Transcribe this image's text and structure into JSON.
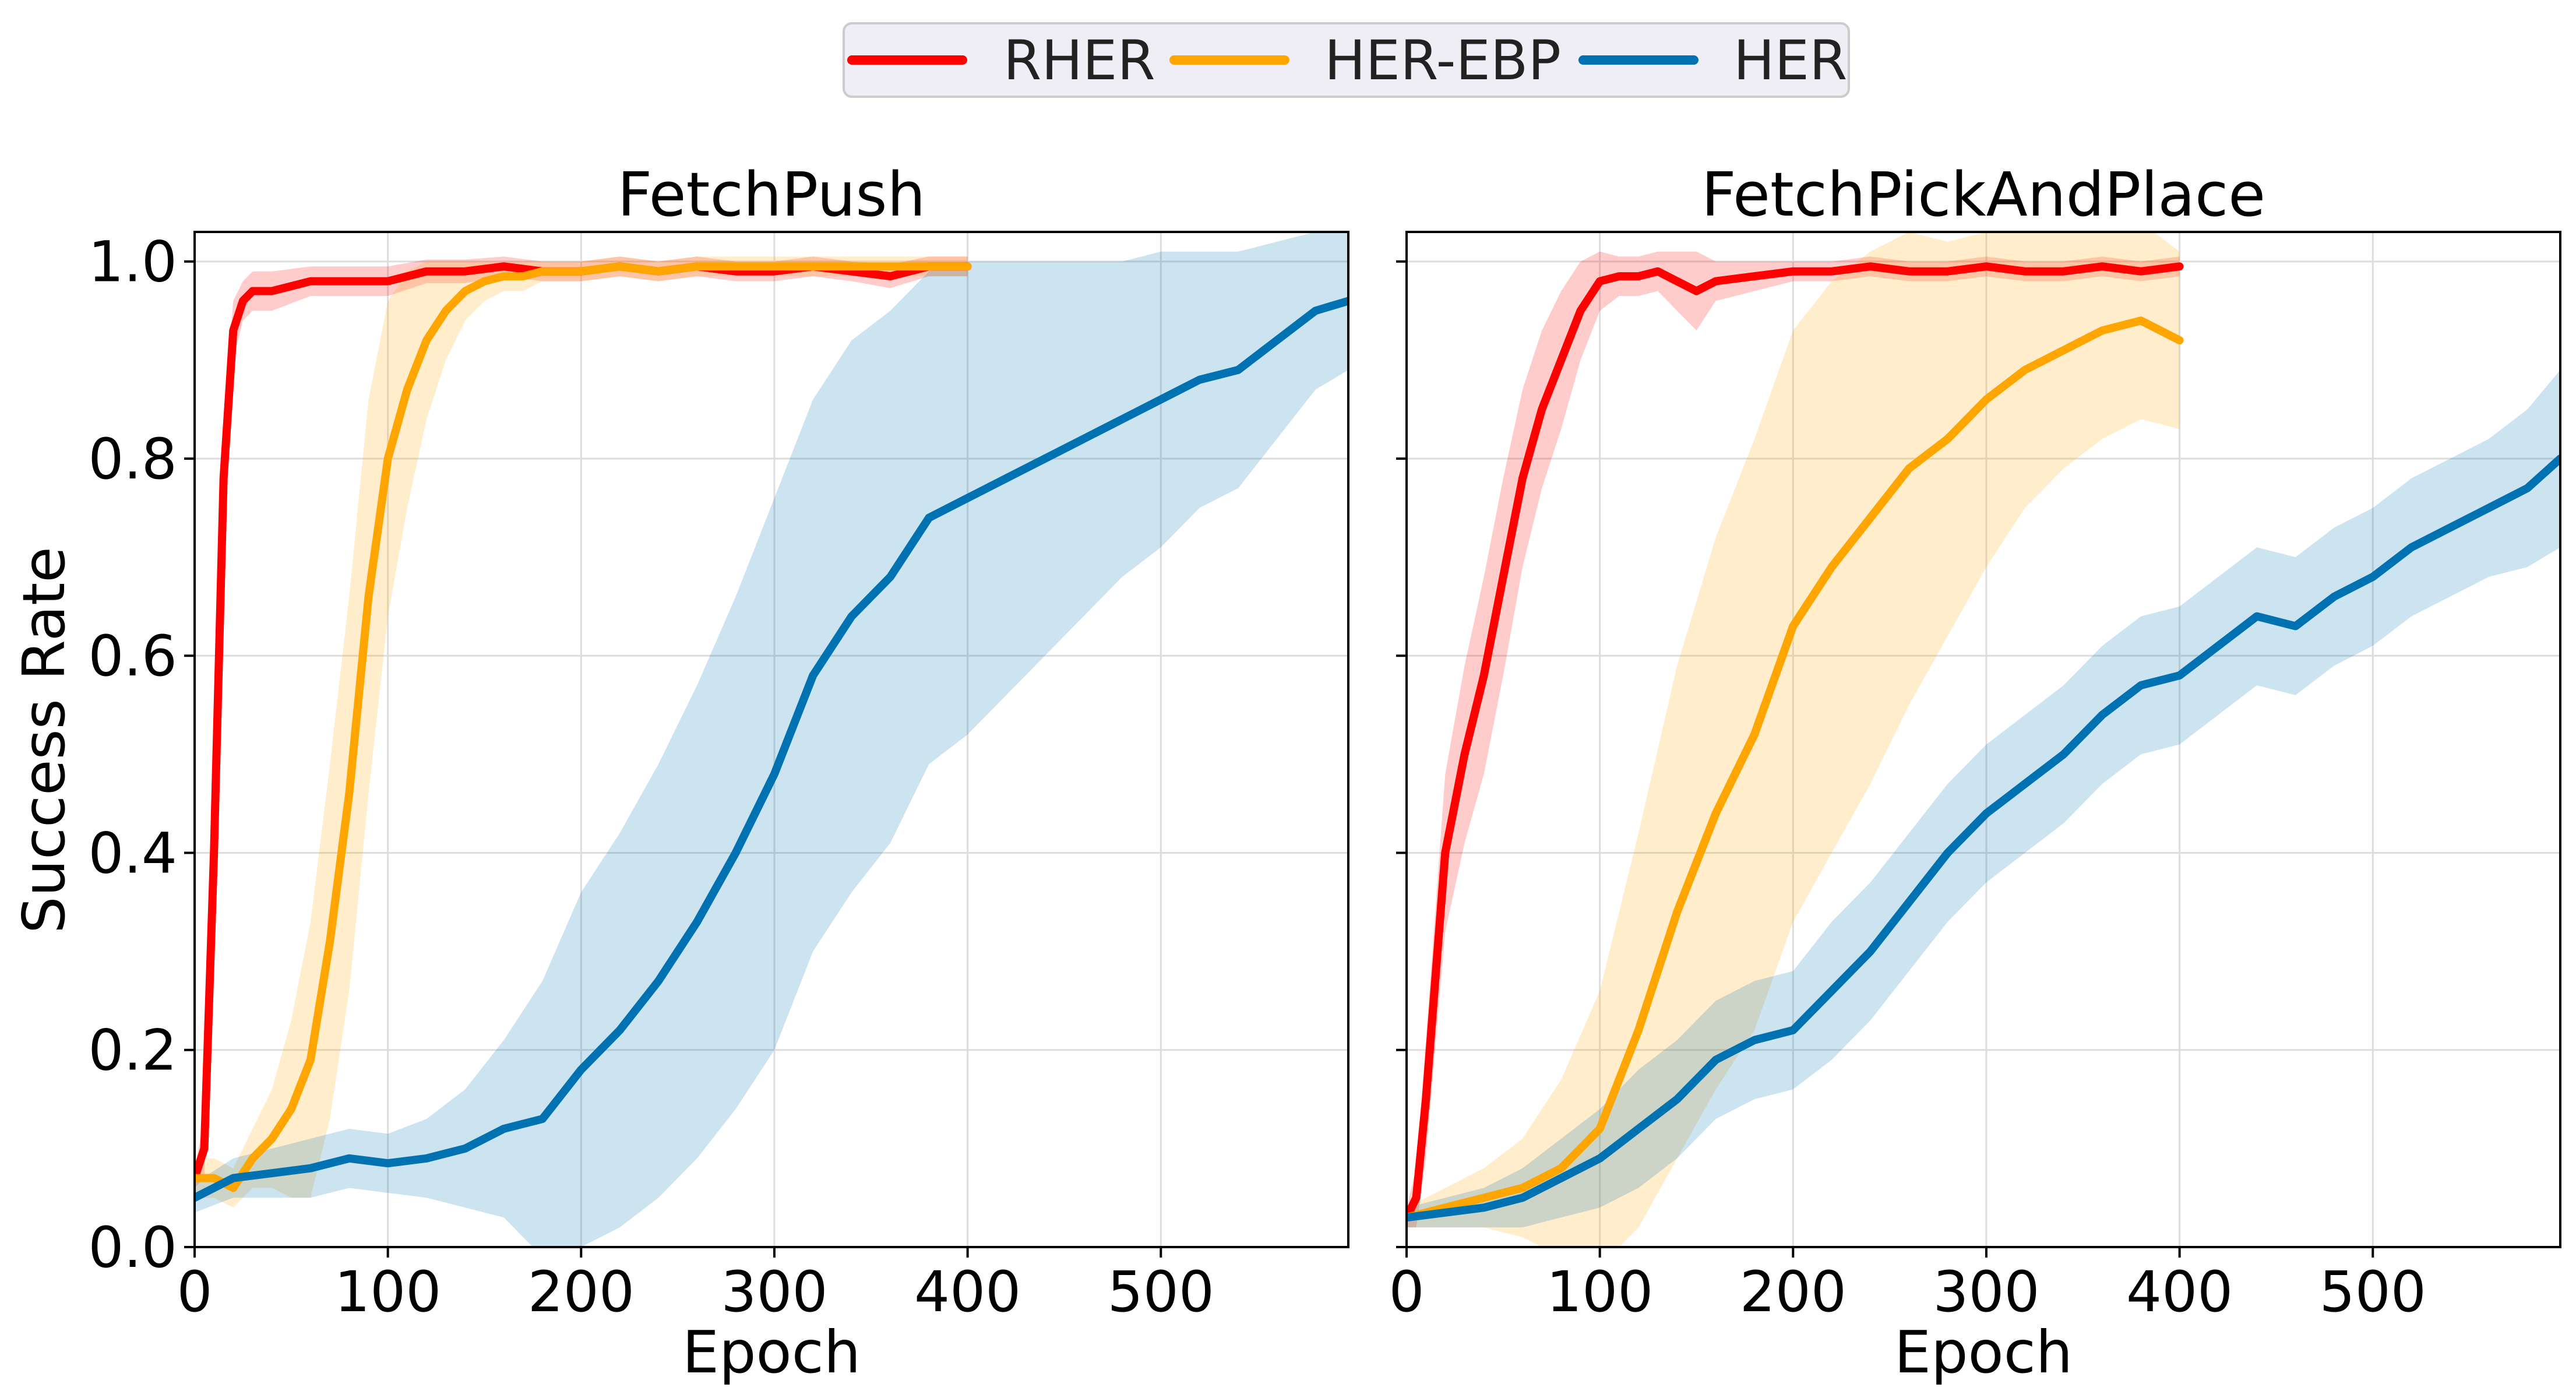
{
  "chart_data": {
    "type": "line",
    "legend": {
      "placement": "top-center",
      "entries": [
        {
          "name": "RHER",
          "color": "#ff0000"
        },
        {
          "name": "HER-EBP",
          "color": "#ffa500"
        },
        {
          "name": "HER",
          "color": "#0072b2"
        }
      ]
    },
    "shared_ylabel": "Success Rate",
    "grid": true,
    "panels": [
      {
        "title": "FetchPush",
        "xlabel": "Epoch",
        "xlim": [
          0,
          597
        ],
        "ylim": [
          0.0,
          1.03
        ],
        "xticks": [
          0,
          100,
          200,
          300,
          400,
          500
        ],
        "yticks": [
          0.0,
          0.2,
          0.4,
          0.6,
          0.8,
          1.0
        ],
        "ytick_labels": [
          "0.0",
          "0.2",
          "0.4",
          "0.6",
          "0.8",
          "1.0"
        ],
        "series": [
          {
            "name": "RHER",
            "color": "#ff0000",
            "x": [
              0,
              5,
              10,
              15,
              20,
              25,
              30,
              40,
              60,
              80,
              100,
              120,
              140,
              160,
              180,
              200,
              220,
              240,
              260,
              280,
              300,
              320,
              340,
              360,
              380,
              400
            ],
            "y": [
              0.07,
              0.1,
              0.4,
              0.78,
              0.93,
              0.96,
              0.97,
              0.97,
              0.98,
              0.98,
              0.98,
              0.99,
              0.99,
              0.995,
              0.99,
              0.99,
              0.995,
              0.99,
              0.995,
              0.99,
              0.99,
              0.995,
              0.99,
              0.985,
              0.995,
              0.995
            ],
            "band": [
              0.01,
              0.03,
              0.08,
              0.06,
              0.03,
              0.02,
              0.02,
              0.02,
              0.015,
              0.015,
              0.015,
              0.012,
              0.012,
              0.01,
              0.01,
              0.01,
              0.01,
              0.01,
              0.01,
              0.01,
              0.01,
              0.01,
              0.01,
              0.012,
              0.01,
              0.01
            ]
          },
          {
            "name": "HER-EBP",
            "color": "#ffa500",
            "x": [
              0,
              10,
              20,
              30,
              40,
              50,
              60,
              70,
              80,
              90,
              100,
              110,
              120,
              130,
              140,
              150,
              160,
              170,
              180,
              200,
              220,
              240,
              260,
              280,
              300,
              320,
              340,
              360,
              380,
              400
            ],
            "y": [
              0.07,
              0.07,
              0.06,
              0.09,
              0.11,
              0.14,
              0.19,
              0.31,
              0.46,
              0.66,
              0.8,
              0.87,
              0.92,
              0.95,
              0.97,
              0.98,
              0.985,
              0.985,
              0.99,
              0.99,
              0.995,
              0.99,
              0.995,
              0.995,
              0.995,
              0.995,
              0.995,
              0.995,
              0.995,
              0.995
            ],
            "band": [
              0.02,
              0.02,
              0.02,
              0.03,
              0.05,
              0.09,
              0.14,
              0.18,
              0.2,
              0.2,
              0.16,
              0.12,
              0.08,
              0.05,
              0.03,
              0.02,
              0.015,
              0.015,
              0.01,
              0.01,
              0.01,
              0.01,
              0.01,
              0.01,
              0.01,
              0.01,
              0.01,
              0.01,
              0.01,
              0.01
            ]
          },
          {
            "name": "HER",
            "color": "#0072b2",
            "x": [
              0,
              20,
              40,
              60,
              80,
              100,
              120,
              140,
              160,
              180,
              200,
              220,
              240,
              260,
              280,
              300,
              320,
              340,
              360,
              380,
              400,
              420,
              440,
              460,
              480,
              500,
              520,
              540,
              560,
              580,
              597
            ],
            "y": [
              0.05,
              0.07,
              0.075,
              0.08,
              0.09,
              0.085,
              0.09,
              0.1,
              0.12,
              0.13,
              0.18,
              0.22,
              0.27,
              0.33,
              0.4,
              0.48,
              0.58,
              0.64,
              0.68,
              0.74,
              0.76,
              0.78,
              0.8,
              0.82,
              0.84,
              0.86,
              0.88,
              0.89,
              0.92,
              0.95,
              0.96
            ],
            "band": [
              0.015,
              0.02,
              0.025,
              0.03,
              0.03,
              0.03,
              0.04,
              0.06,
              0.09,
              0.14,
              0.18,
              0.2,
              0.22,
              0.24,
              0.26,
              0.28,
              0.28,
              0.28,
              0.27,
              0.25,
              0.24,
              0.22,
              0.2,
              0.18,
              0.16,
              0.15,
              0.13,
              0.12,
              0.1,
              0.08,
              0.07
            ]
          }
        ]
      },
      {
        "title": "FetchPickAndPlace",
        "xlabel": "Epoch",
        "xlim": [
          0,
          597
        ],
        "ylim": [
          0.0,
          1.03
        ],
        "xticks": [
          0,
          100,
          200,
          300,
          400,
          500
        ],
        "yticks": [
          0.0,
          0.2,
          0.4,
          0.6,
          0.8,
          1.0
        ],
        "ytick_labels": [],
        "series": [
          {
            "name": "RHER",
            "color": "#ff0000",
            "x": [
              0,
              5,
              10,
              20,
              30,
              40,
              50,
              60,
              70,
              80,
              90,
              100,
              110,
              120,
              130,
              140,
              150,
              160,
              180,
              200,
              220,
              240,
              260,
              280,
              300,
              320,
              340,
              360,
              380,
              400
            ],
            "y": [
              0.03,
              0.05,
              0.15,
              0.4,
              0.5,
              0.58,
              0.68,
              0.78,
              0.85,
              0.9,
              0.95,
              0.98,
              0.985,
              0.985,
              0.99,
              0.98,
              0.97,
              0.98,
              0.985,
              0.99,
              0.99,
              0.995,
              0.99,
              0.99,
              0.995,
              0.99,
              0.99,
              0.995,
              0.99,
              0.995
            ],
            "band": [
              0.01,
              0.03,
              0.06,
              0.08,
              0.09,
              0.1,
              0.1,
              0.09,
              0.08,
              0.07,
              0.05,
              0.03,
              0.02,
              0.02,
              0.02,
              0.03,
              0.04,
              0.02,
              0.015,
              0.01,
              0.01,
              0.01,
              0.01,
              0.01,
              0.01,
              0.01,
              0.01,
              0.01,
              0.01,
              0.01
            ]
          },
          {
            "name": "HER-EBP",
            "color": "#ffa500",
            "x": [
              0,
              20,
              40,
              60,
              80,
              100,
              120,
              140,
              160,
              180,
              200,
              220,
              240,
              260,
              280,
              300,
              320,
              340,
              360,
              380,
              400
            ],
            "y": [
              0.03,
              0.04,
              0.05,
              0.06,
              0.08,
              0.12,
              0.22,
              0.34,
              0.44,
              0.52,
              0.63,
              0.69,
              0.74,
              0.79,
              0.82,
              0.86,
              0.89,
              0.91,
              0.93,
              0.94,
              0.92
            ],
            "band": [
              0.01,
              0.02,
              0.03,
              0.05,
              0.09,
              0.14,
              0.2,
              0.25,
              0.28,
              0.3,
              0.3,
              0.29,
              0.27,
              0.24,
              0.2,
              0.17,
              0.14,
              0.12,
              0.11,
              0.1,
              0.09
            ]
          },
          {
            "name": "HER",
            "color": "#0072b2",
            "x": [
              0,
              20,
              40,
              60,
              80,
              100,
              120,
              140,
              160,
              180,
              200,
              220,
              240,
              260,
              280,
              300,
              320,
              340,
              360,
              380,
              400,
              420,
              440,
              460,
              480,
              500,
              520,
              540,
              560,
              580,
              597
            ],
            "y": [
              0.03,
              0.035,
              0.04,
              0.05,
              0.07,
              0.09,
              0.12,
              0.15,
              0.19,
              0.21,
              0.22,
              0.26,
              0.3,
              0.35,
              0.4,
              0.44,
              0.47,
              0.5,
              0.54,
              0.57,
              0.58,
              0.61,
              0.64,
              0.63,
              0.66,
              0.68,
              0.71,
              0.73,
              0.75,
              0.77,
              0.8
            ],
            "band": [
              0.01,
              0.015,
              0.02,
              0.03,
              0.04,
              0.05,
              0.06,
              0.06,
              0.06,
              0.06,
              0.06,
              0.07,
              0.07,
              0.07,
              0.07,
              0.07,
              0.07,
              0.07,
              0.07,
              0.07,
              0.07,
              0.07,
              0.07,
              0.07,
              0.07,
              0.07,
              0.07,
              0.07,
              0.07,
              0.08,
              0.09
            ]
          }
        ]
      }
    ]
  }
}
